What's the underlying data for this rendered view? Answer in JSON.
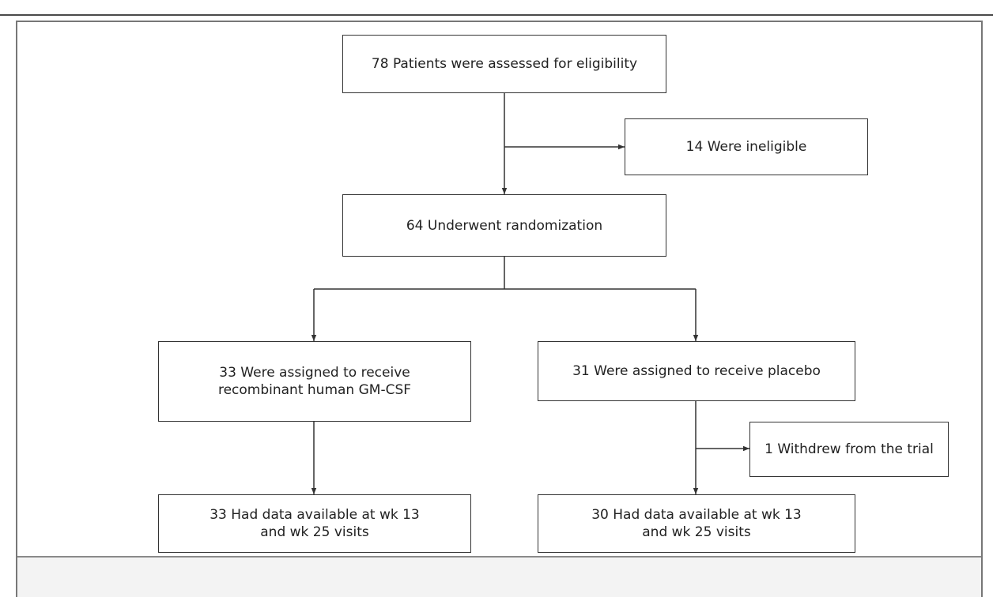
{
  "flowchart": {
    "assessed": "78 Patients were assessed for eligibility",
    "ineligible": "14 Were ineligible",
    "randomized": "64 Underwent randomization",
    "gmcsf_arm": "33 Were assigned to receive\nrecombinant human GM-CSF",
    "placebo_arm": "31 Were assigned to receive placebo",
    "withdrew": "1 Withdrew from the trial",
    "gmcsf_data": "33 Had data available at wk 13\nand wk 25 visits",
    "placebo_data": "30 Had data available at wk 13\nand wk 25 visits"
  },
  "colors": {
    "line": "#333333",
    "frame": "#777777",
    "footer": "#f3f3f3"
  }
}
